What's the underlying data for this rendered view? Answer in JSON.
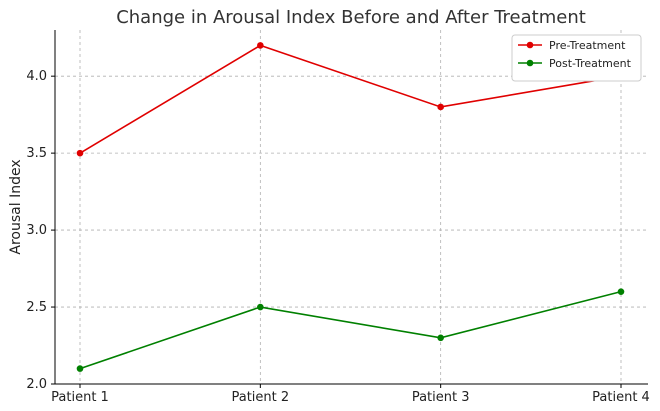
{
  "chart_data": {
    "type": "line",
    "title": "Change in Arousal Index Before and After Treatment",
    "xlabel": "",
    "ylabel": "Arousal Index",
    "categories": [
      "Patient 1",
      "Patient 2",
      "Patient 3",
      "Patient 4"
    ],
    "ylim": [
      2.0,
      4.3
    ],
    "yticks": [
      2.0,
      2.5,
      3.0,
      3.5,
      4.0
    ],
    "ytick_labels": [
      "2.0",
      "2.5",
      "3.0",
      "3.5",
      "4.0"
    ],
    "grid": true,
    "legend_position": "top-right",
    "series": [
      {
        "name": "Pre-Treatment",
        "values": [
          3.5,
          4.2,
          3.8,
          4.0
        ],
        "color": "#e00000"
      },
      {
        "name": "Post-Treatment",
        "values": [
          2.1,
          2.5,
          2.3,
          2.6
        ],
        "color": "#008000"
      }
    ]
  }
}
